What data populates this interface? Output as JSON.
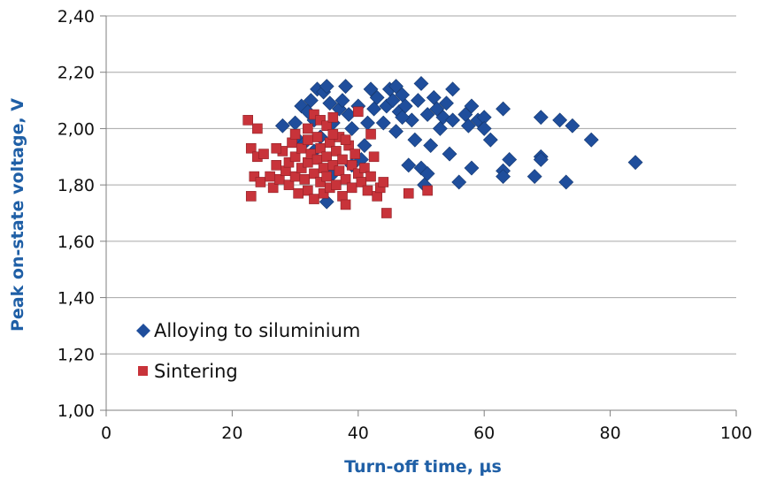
{
  "chart_data": {
    "type": "scatter",
    "title": "",
    "xlabel": "Turn-off time, µs",
    "ylabel": "Peak on-state voltage, V",
    "xlim": [
      0,
      100
    ],
    "ylim": [
      1.0,
      2.4
    ],
    "x_ticks": [
      "0",
      "20",
      "40",
      "60",
      "80",
      "100"
    ],
    "y_ticks": [
      "1,00",
      "1,20",
      "1,40",
      "1,60",
      "1,80",
      "2,00",
      "2,20",
      "2,40"
    ],
    "grid": "horizontal",
    "legend_position": "bottom-left",
    "series": [
      {
        "name": "Alloying to siluminium",
        "marker": "diamond",
        "color": "#1f4e9c",
        "points": [
          [
            28,
            2.01
          ],
          [
            30,
            2.02
          ],
          [
            30.5,
            1.96
          ],
          [
            31,
            2.08
          ],
          [
            31.5,
            1.95
          ],
          [
            32,
            2.06
          ],
          [
            32.5,
            2.1
          ],
          [
            33,
            2.03
          ],
          [
            33.5,
            2.14
          ],
          [
            34,
            1.97
          ],
          [
            34.5,
            2.13
          ],
          [
            35,
            2.15
          ],
          [
            35.5,
            2.09
          ],
          [
            35,
            1.74
          ],
          [
            36,
            2.02
          ],
          [
            37,
            2.07
          ],
          [
            37.5,
            2.1
          ],
          [
            38,
            2.15
          ],
          [
            38.5,
            2.05
          ],
          [
            39,
            2.0
          ],
          [
            40,
            2.08
          ],
          [
            40.5,
            1.89
          ],
          [
            41,
            1.94
          ],
          [
            41.5,
            2.02
          ],
          [
            42,
            2.14
          ],
          [
            42.5,
            2.07
          ],
          [
            43,
            2.11
          ],
          [
            44,
            2.02
          ],
          [
            44.5,
            2.08
          ],
          [
            45,
            2.14
          ],
          [
            45.5,
            2.1
          ],
          [
            46,
            2.15
          ],
          [
            46,
            1.99
          ],
          [
            46.5,
            2.06
          ],
          [
            47,
            2.12
          ],
          [
            47.5,
            2.08
          ],
          [
            48,
            1.87
          ],
          [
            48.5,
            2.03
          ],
          [
            49,
            1.96
          ],
          [
            49.5,
            2.1
          ],
          [
            50,
            2.16
          ],
          [
            50,
            1.86
          ],
          [
            50.5,
            1.8
          ],
          [
            51,
            2.05
          ],
          [
            51,
            1.84
          ],
          [
            51.5,
            1.94
          ],
          [
            52,
            2.11
          ],
          [
            52.5,
            2.07
          ],
          [
            53,
            2.0
          ],
          [
            53.5,
            2.04
          ],
          [
            54,
            2.09
          ],
          [
            54.5,
            1.91
          ],
          [
            55,
            2.14
          ],
          [
            56,
            1.81
          ],
          [
            57,
            2.05
          ],
          [
            57.5,
            2.01
          ],
          [
            58,
            2.08
          ],
          [
            58,
            1.86
          ],
          [
            59,
            2.03
          ],
          [
            60,
            2.04
          ],
          [
            60,
            2.0
          ],
          [
            61,
            1.96
          ],
          [
            63,
            2.07
          ],
          [
            63,
            1.85
          ],
          [
            63,
            1.83
          ],
          [
            64,
            1.89
          ],
          [
            68,
            1.83
          ],
          [
            69,
            2.04
          ],
          [
            69,
            1.9
          ],
          [
            69,
            1.89
          ],
          [
            72,
            2.03
          ],
          [
            73,
            1.81
          ],
          [
            74,
            2.01
          ],
          [
            77,
            1.96
          ],
          [
            84,
            1.88
          ],
          [
            36,
            1.84
          ],
          [
            33,
            1.92
          ],
          [
            39,
            1.87
          ],
          [
            47,
            2.04
          ],
          [
            55,
            2.03
          ]
        ]
      },
      {
        "name": "Sintering",
        "marker": "square",
        "color": "#c8333a",
        "points": [
          [
            22.5,
            2.03
          ],
          [
            23,
            1.93
          ],
          [
            23,
            1.76
          ],
          [
            23.5,
            1.83
          ],
          [
            24,
            2.0
          ],
          [
            24,
            1.9
          ],
          [
            24.5,
            1.81
          ],
          [
            25,
            1.91
          ],
          [
            26,
            1.83
          ],
          [
            26.5,
            1.79
          ],
          [
            27,
            1.87
          ],
          [
            27.5,
            1.82
          ],
          [
            28,
            1.92
          ],
          [
            28.5,
            1.85
          ],
          [
            29,
            1.88
          ],
          [
            29,
            1.8
          ],
          [
            29.5,
            1.95
          ],
          [
            30,
            1.83
          ],
          [
            30,
            1.9
          ],
          [
            30.5,
            1.77
          ],
          [
            31,
            1.86
          ],
          [
            31,
            1.93
          ],
          [
            31.5,
            1.82
          ],
          [
            32,
            2.0
          ],
          [
            32,
            1.88
          ],
          [
            32,
            1.78
          ],
          [
            32.5,
            1.91
          ],
          [
            33,
            2.05
          ],
          [
            33,
            1.84
          ],
          [
            33,
            1.75
          ],
          [
            33.5,
            1.97
          ],
          [
            33.5,
            1.89
          ],
          [
            34,
            2.03
          ],
          [
            34,
            1.81
          ],
          [
            34,
            1.93
          ],
          [
            34.5,
            1.77
          ],
          [
            34.5,
            1.86
          ],
          [
            35,
            2.01
          ],
          [
            35,
            1.9
          ],
          [
            35,
            1.83
          ],
          [
            35.5,
            1.95
          ],
          [
            35.5,
            1.79
          ],
          [
            36,
            1.87
          ],
          [
            36,
            2.04
          ],
          [
            36.5,
            1.92
          ],
          [
            36.5,
            1.8
          ],
          [
            37,
            1.85
          ],
          [
            37,
            1.97
          ],
          [
            37.5,
            1.89
          ],
          [
            37.5,
            1.76
          ],
          [
            38,
            1.82
          ],
          [
            38,
            1.73
          ],
          [
            38.5,
            1.94
          ],
          [
            39,
            1.87
          ],
          [
            39,
            1.79
          ],
          [
            39.5,
            1.91
          ],
          [
            40,
            2.06
          ],
          [
            40,
            1.84
          ],
          [
            40.5,
            1.81
          ],
          [
            41,
            1.86
          ],
          [
            41.5,
            1.78
          ],
          [
            42,
            1.83
          ],
          [
            42,
            1.98
          ],
          [
            42.5,
            1.9
          ],
          [
            43,
            1.76
          ],
          [
            43.5,
            1.79
          ],
          [
            44,
            1.81
          ],
          [
            44.5,
            1.7
          ],
          [
            48,
            1.77
          ],
          [
            51,
            1.78
          ],
          [
            30,
            1.98
          ],
          [
            32,
            1.96
          ],
          [
            36,
            1.98
          ],
          [
            38,
            1.96
          ],
          [
            27,
            1.93
          ]
        ]
      }
    ]
  }
}
